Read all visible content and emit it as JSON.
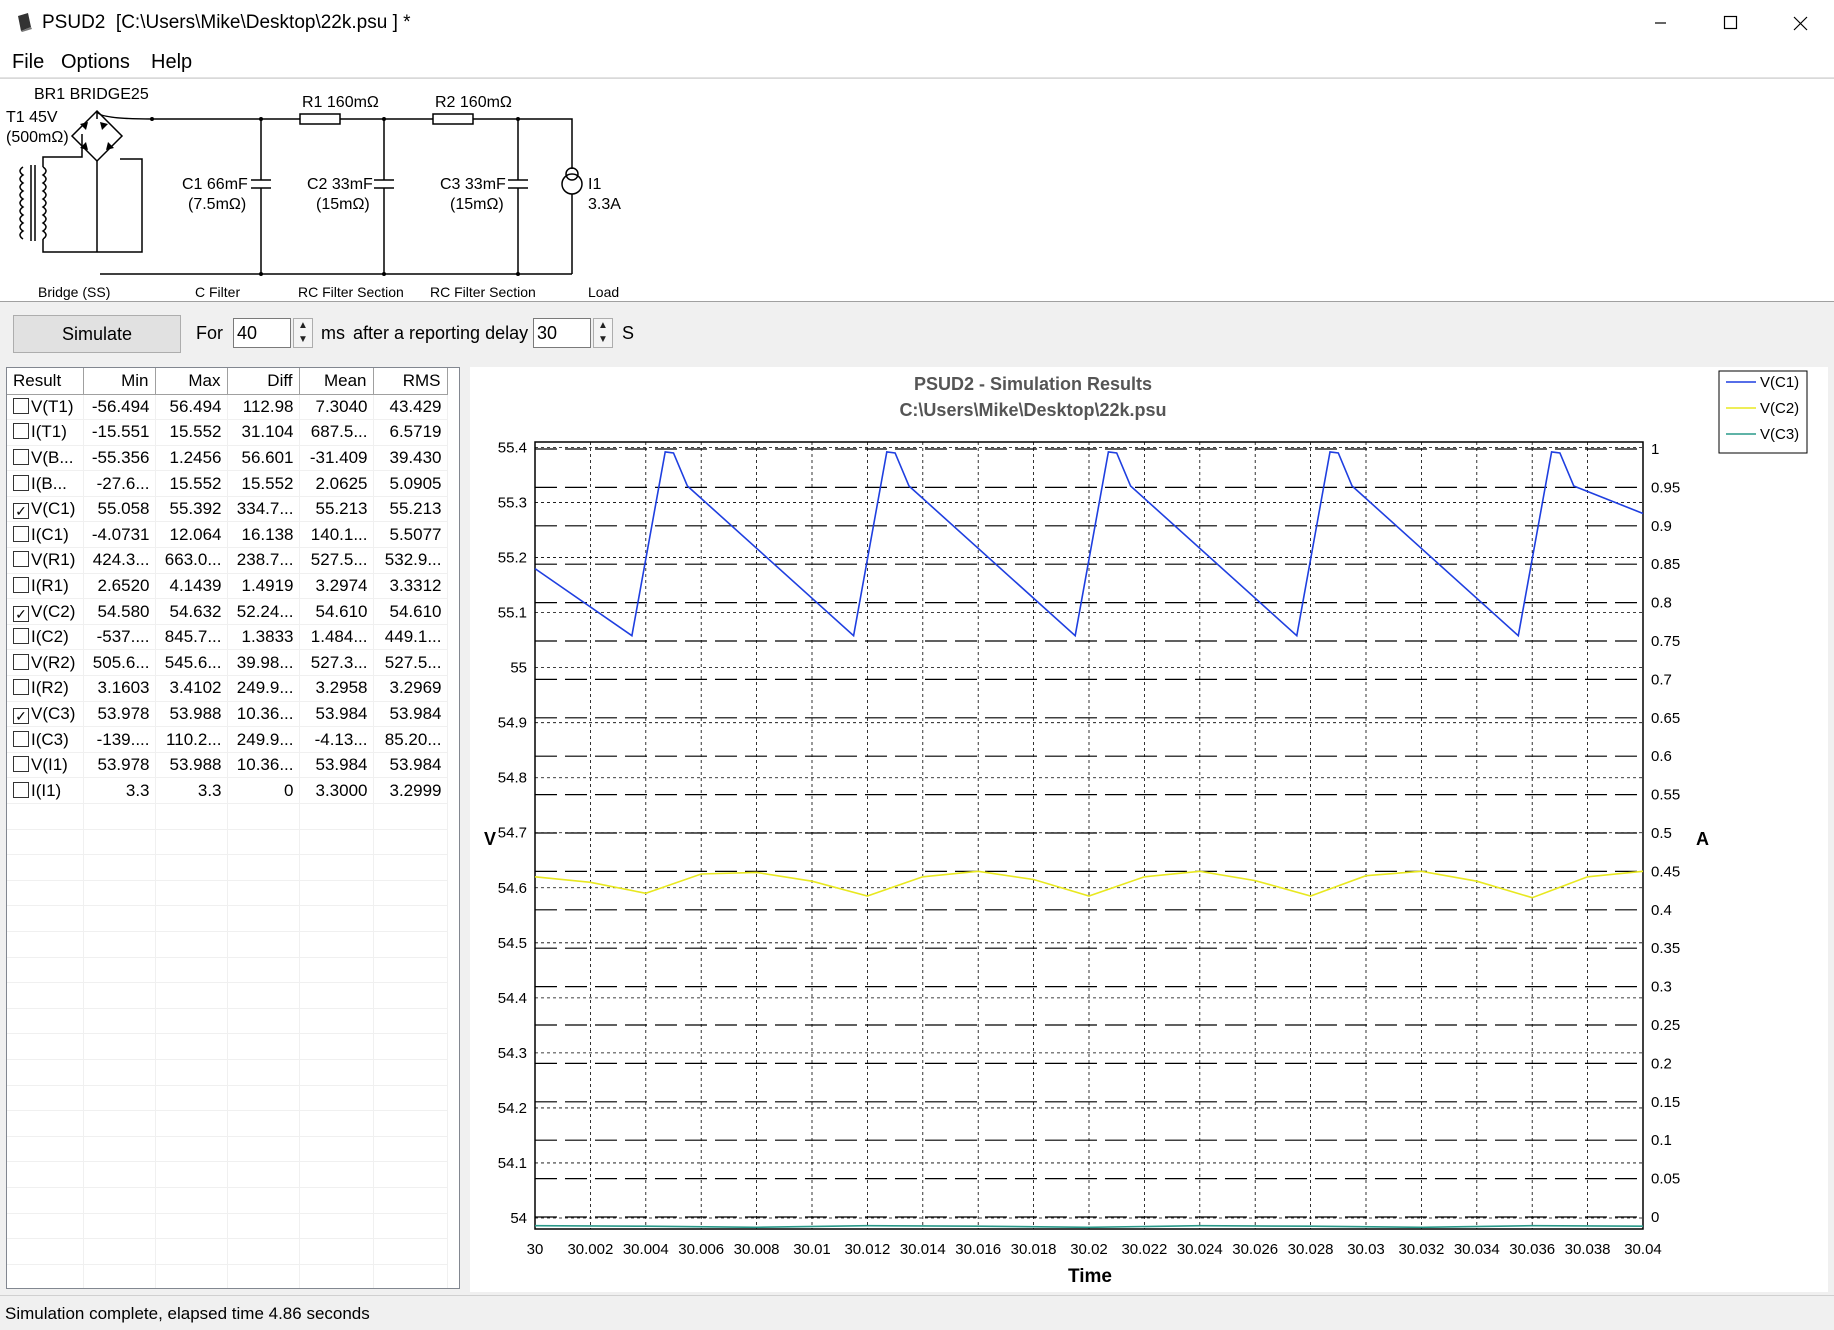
{
  "window": {
    "title": "PSUD2  [C:\\Users\\Mike\\Desktop\\22k.psu ] *",
    "app_icon": "psud-app-icon",
    "controls": [
      "minimize-icon",
      "maximize-icon",
      "close-icon"
    ]
  },
  "menu": {
    "file": "File",
    "options": "Options",
    "help": "Help"
  },
  "schematic": {
    "bridge": "BR1 BRIDGE25",
    "transformer": "T1 45V",
    "transformer_res": "(500mΩ)",
    "r1": "R1 160mΩ",
    "r2": "R2 160mΩ",
    "c1": "C1 66mF",
    "c1_esr": "(7.5mΩ)",
    "c2": "C2 33mF",
    "c2_esr": "(15mΩ)",
    "c3": "C3 33mF",
    "c3_esr": "(15mΩ)",
    "i1": "I1",
    "i1_val": "3.3A",
    "sections": [
      "Bridge (SS)",
      "C Filter",
      "RC Filter Section",
      "RC Filter Section",
      "Load"
    ]
  },
  "controls": {
    "simulate": "Simulate",
    "for_label": "For",
    "duration_value": "40",
    "ms_label": "ms",
    "delay_label": "after a reporting delay of",
    "delay_value": "30",
    "s_label": "S"
  },
  "results": {
    "headers": [
      "Result",
      "Min",
      "Max",
      "Diff",
      "Mean",
      "RMS"
    ],
    "rows": [
      {
        "name": "V(T1)",
        "checked": false,
        "min": "-56.494",
        "max": "56.494",
        "diff": "112.98",
        "mean": "7.3040",
        "rms": "43.429"
      },
      {
        "name": "I(T1)",
        "checked": false,
        "min": "-15.551",
        "max": "15.552",
        "diff": "31.104",
        "mean": "687.5...",
        "rms": "6.5719"
      },
      {
        "name": "V(B...",
        "checked": false,
        "min": "-55.356",
        "max": "1.2456",
        "diff": "56.601",
        "mean": "-31.409",
        "rms": "39.430"
      },
      {
        "name": "I(B...",
        "checked": false,
        "min": "-27.6...",
        "max": "15.552",
        "diff": "15.552",
        "mean": "2.0625",
        "rms": "5.0905"
      },
      {
        "name": "V(C1)",
        "checked": true,
        "min": "55.058",
        "max": "55.392",
        "diff": "334.7...",
        "mean": "55.213",
        "rms": "55.213"
      },
      {
        "name": "I(C1)",
        "checked": false,
        "min": "-4.0731",
        "max": "12.064",
        "diff": "16.138",
        "mean": "140.1...",
        "rms": "5.5077"
      },
      {
        "name": "V(R1)",
        "checked": false,
        "min": "424.3...",
        "max": "663.0...",
        "diff": "238.7...",
        "mean": "527.5...",
        "rms": "532.9..."
      },
      {
        "name": "I(R1)",
        "checked": false,
        "min": "2.6520",
        "max": "4.1439",
        "diff": "1.4919",
        "mean": "3.2974",
        "rms": "3.3312"
      },
      {
        "name": "V(C2)",
        "checked": true,
        "min": "54.580",
        "max": "54.632",
        "diff": "52.24...",
        "mean": "54.610",
        "rms": "54.610"
      },
      {
        "name": "I(C2)",
        "checked": false,
        "min": "-537....",
        "max": "845.7...",
        "diff": "1.3833",
        "mean": "1.484...",
        "rms": "449.1..."
      },
      {
        "name": "V(R2)",
        "checked": false,
        "min": "505.6...",
        "max": "545.6...",
        "diff": "39.98...",
        "mean": "527.3...",
        "rms": "527.5..."
      },
      {
        "name": "I(R2)",
        "checked": false,
        "min": "3.1603",
        "max": "3.4102",
        "diff": "249.9...",
        "mean": "3.2958",
        "rms": "3.2969"
      },
      {
        "name": "V(C3)",
        "checked": true,
        "min": "53.978",
        "max": "53.988",
        "diff": "10.36...",
        "mean": "53.984",
        "rms": "53.984"
      },
      {
        "name": "I(C3)",
        "checked": false,
        "min": "-139....",
        "max": "110.2...",
        "diff": "249.9...",
        "mean": "-4.13...",
        "rms": "85.20..."
      },
      {
        "name": "V(I1)",
        "checked": false,
        "min": "53.978",
        "max": "53.988",
        "diff": "10.36...",
        "mean": "53.984",
        "rms": "53.984"
      },
      {
        "name": "I(I1)",
        "checked": false,
        "min": "3.3",
        "max": "3.3",
        "diff": "0",
        "mean": "3.3000",
        "rms": "3.2999"
      }
    ]
  },
  "chart_data": {
    "type": "line",
    "title": "PSUD2 - Simulation Results",
    "subtitle": "C:\\Users\\Mike\\Desktop\\22k.psu",
    "xlabel": "Time",
    "ylabel": "V",
    "y2label": "A",
    "xlim": [
      30,
      30.04
    ],
    "ylim": [
      53.98,
      55.41
    ],
    "y2lim": [
      0,
      1
    ],
    "x_ticks": [
      "30",
      "30.002",
      "30.004",
      "30.006",
      "30.008",
      "30.01",
      "30.012",
      "30.014",
      "30.016",
      "30.018",
      "30.02",
      "30.022",
      "30.024",
      "30.026",
      "30.028",
      "30.03",
      "30.032",
      "30.034",
      "30.036",
      "30.038",
      "30.04"
    ],
    "y_ticks": [
      "54",
      "54.1",
      "54.2",
      "54.3",
      "54.4",
      "54.5",
      "54.6",
      "54.7",
      "54.8",
      "54.9",
      "55",
      "55.1",
      "55.2",
      "55.3",
      "55.4"
    ],
    "y2_ticks": [
      "0",
      "0.05",
      "0.1",
      "0.15",
      "0.2",
      "0.25",
      "0.3",
      "0.35",
      "0.4",
      "0.45",
      "0.5",
      "0.55",
      "0.6",
      "0.65",
      "0.7",
      "0.75",
      "0.8",
      "0.85",
      "0.9",
      "0.95",
      "1"
    ],
    "grid": true,
    "legend": "top-right",
    "series": [
      {
        "name": "V(C1)",
        "color": "#1f3fe0",
        "x": [
          30,
          30.0035,
          30.0047,
          30.005,
          30.0055,
          30.0115,
          30.0127,
          30.013,
          30.0135,
          30.0195,
          30.0207,
          30.021,
          30.0215,
          30.0275,
          30.0287,
          30.029,
          30.0295,
          30.0355,
          30.0367,
          30.037,
          30.0375,
          30.04
        ],
        "y": [
          55.18,
          55.058,
          55.392,
          55.39,
          55.33,
          55.058,
          55.392,
          55.39,
          55.33,
          55.058,
          55.392,
          55.39,
          55.33,
          55.058,
          55.392,
          55.39,
          55.33,
          55.058,
          55.392,
          55.39,
          55.33,
          55.28
        ]
      },
      {
        "name": "V(C2)",
        "color": "#e8e820",
        "x": [
          30,
          30.002,
          30.004,
          30.006,
          30.008,
          30.01,
          30.012,
          30.014,
          30.016,
          30.018,
          30.02,
          30.022,
          30.024,
          30.026,
          30.028,
          30.03,
          30.032,
          30.034,
          30.036,
          30.038,
          30.04
        ],
        "y": [
          54.62,
          54.61,
          54.59,
          54.625,
          54.628,
          54.612,
          54.585,
          54.62,
          54.63,
          54.615,
          54.585,
          54.62,
          54.63,
          54.613,
          54.585,
          54.622,
          54.63,
          54.612,
          54.582,
          54.62,
          54.63
        ]
      },
      {
        "name": "V(C3)",
        "color": "#2a9a8a",
        "x": [
          30,
          30.004,
          30.008,
          30.012,
          30.016,
          30.02,
          30.024,
          30.028,
          30.032,
          30.036,
          30.04
        ],
        "y": [
          53.986,
          53.985,
          53.983,
          53.986,
          53.985,
          53.983,
          53.986,
          53.985,
          53.983,
          53.986,
          53.985
        ]
      }
    ]
  },
  "status": "Simulation complete, elapsed time 4.86 seconds"
}
